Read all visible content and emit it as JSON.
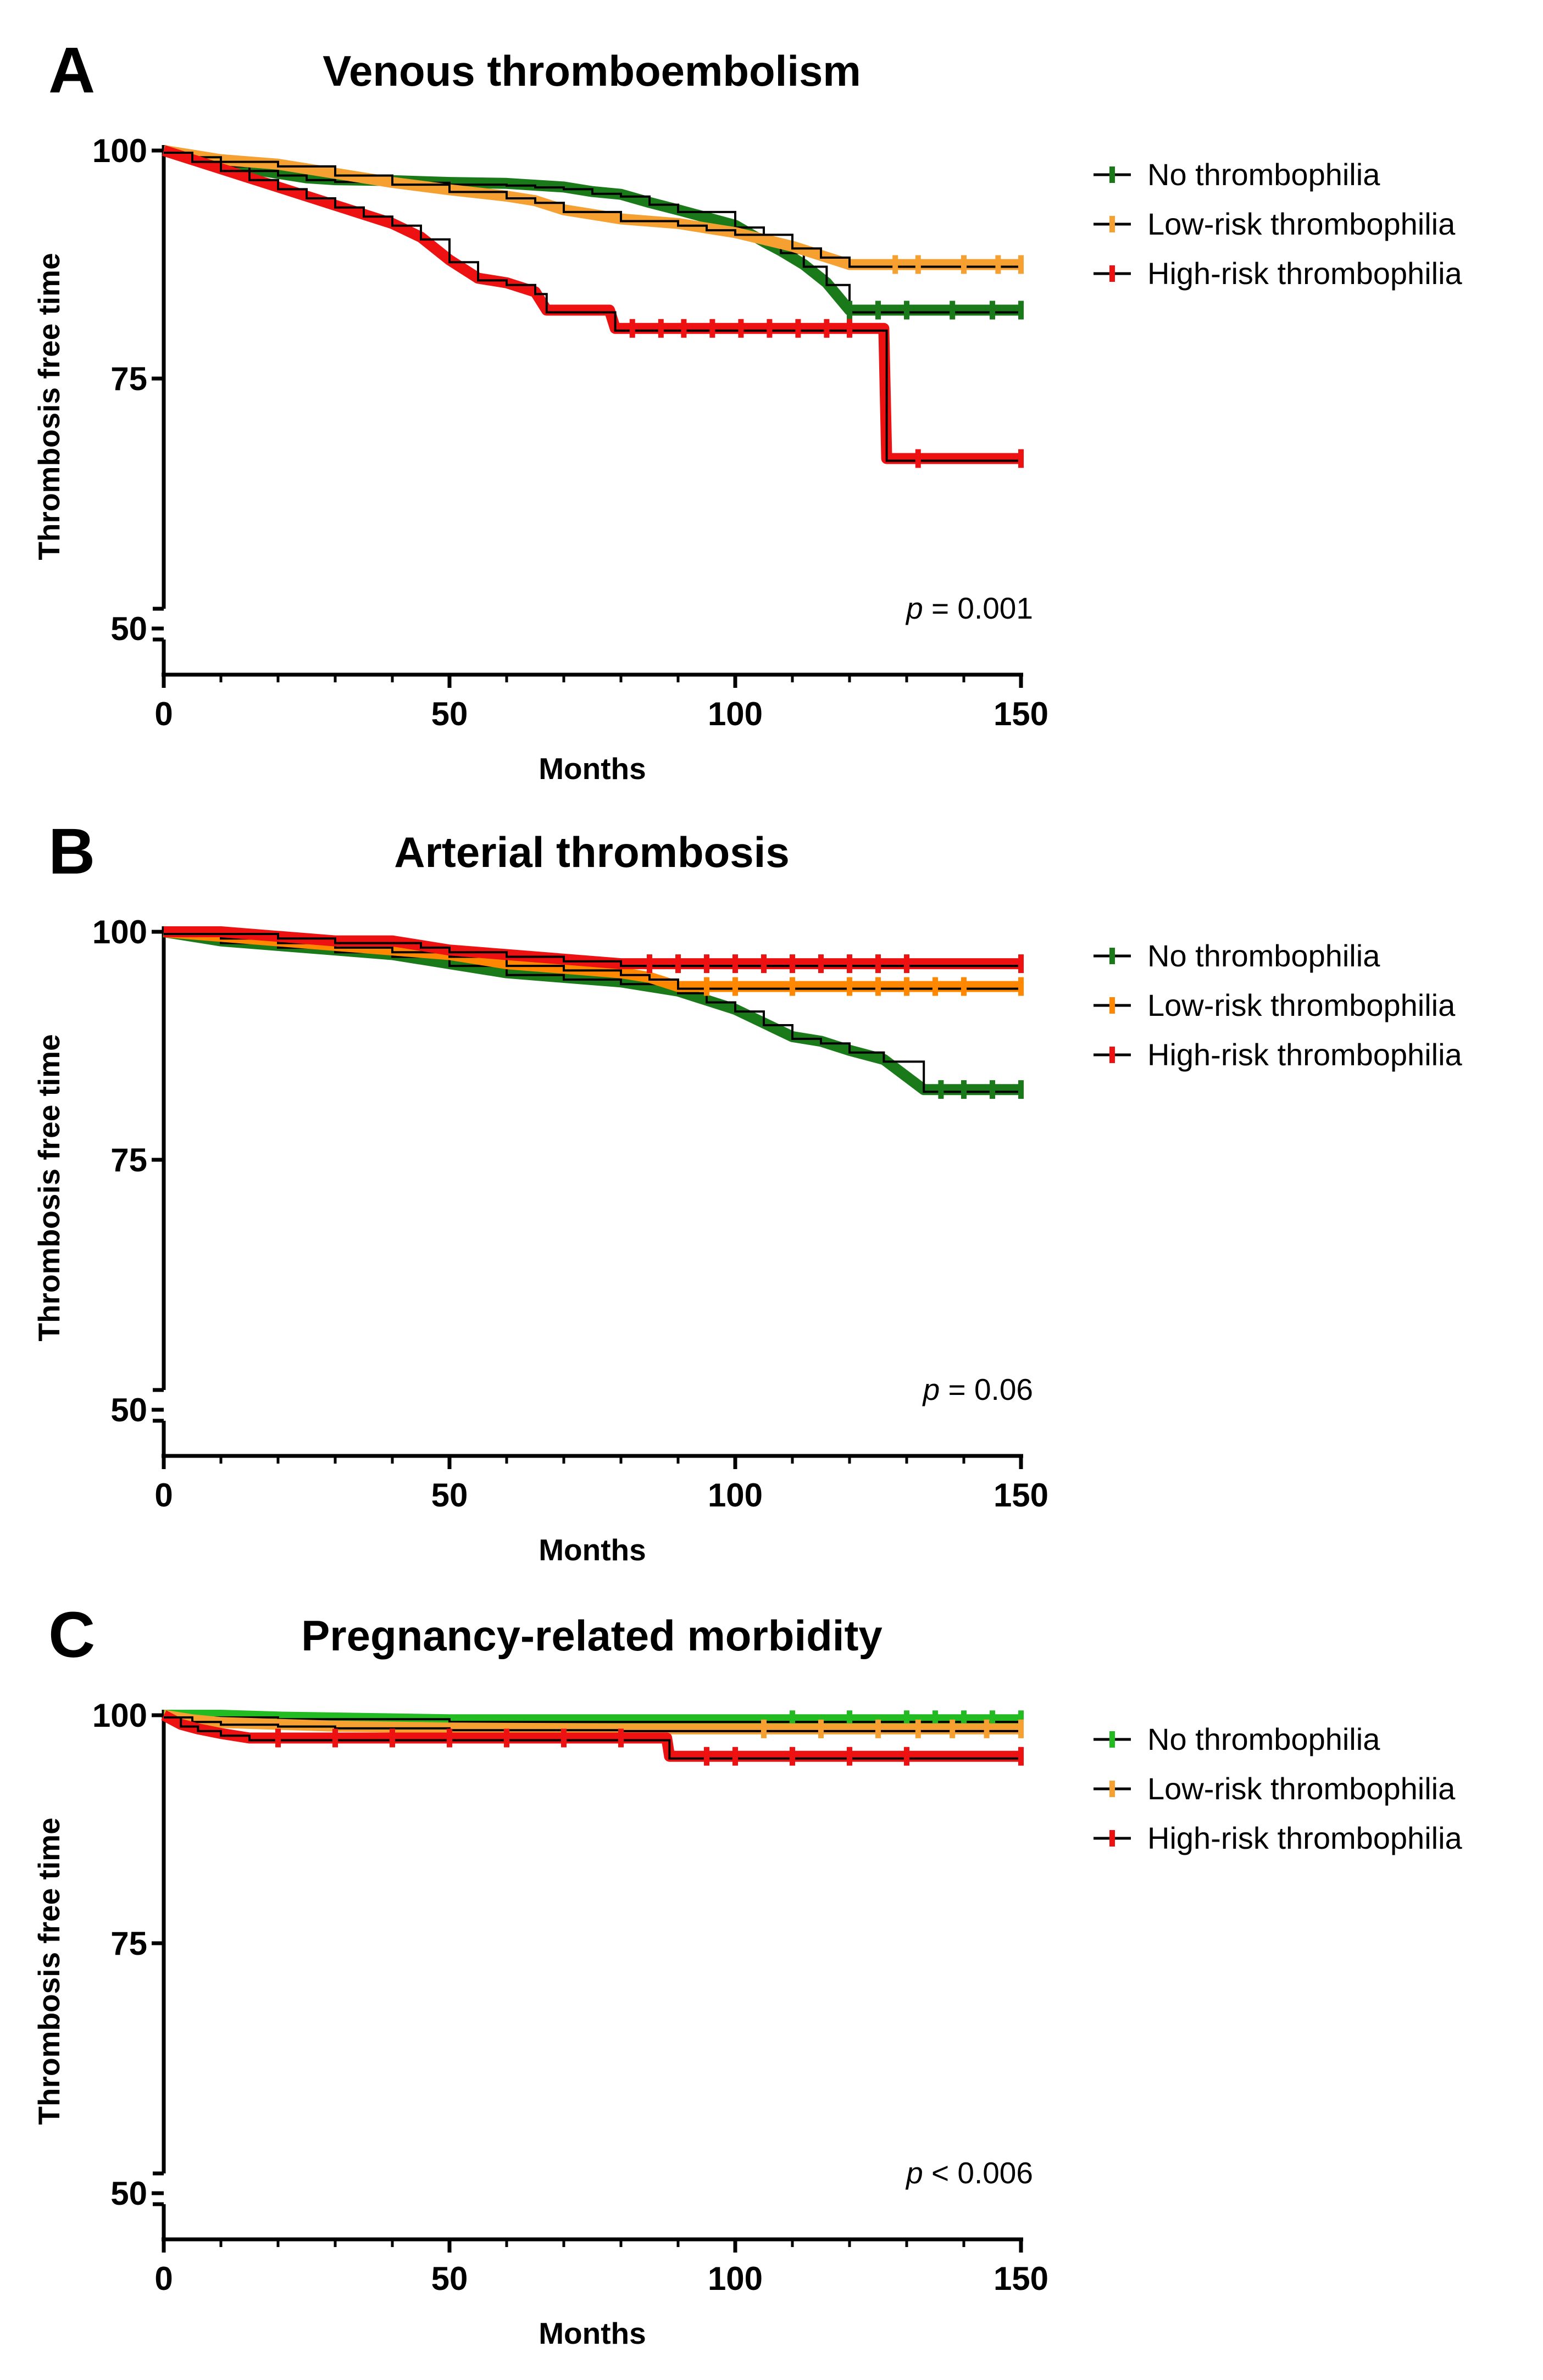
{
  "chart_data": [
    {
      "panel": "A",
      "type": "line",
      "title": "Venous thromboembolism",
      "xlabel": "Months",
      "ylabel": "Thrombosis free time",
      "xlim": [
        0,
        150
      ],
      "ylim": [
        50,
        100
      ],
      "xticks": [
        0,
        50,
        100,
        150
      ],
      "yticks": [
        50,
        75,
        100
      ],
      "p_prefix": "p",
      "p_rest": " = 0.001",
      "legend": [
        "No thrombophilia",
        "Low-risk thrombophilia",
        "High-risk thrombophilia"
      ],
      "series": [
        {
          "name": "No thrombophilia",
          "color": "#1a7a1a",
          "points": [
            [
              0,
              100
            ],
            [
              5,
              99
            ],
            [
              10,
              98.5
            ],
            [
              15,
              98
            ],
            [
              20,
              97.5
            ],
            [
              25,
              97
            ],
            [
              30,
              96.8
            ],
            [
              40,
              96.7
            ],
            [
              50,
              96.5
            ],
            [
              60,
              96.4
            ],
            [
              65,
              96.2
            ],
            [
              70,
              96
            ],
            [
              75,
              95.5
            ],
            [
              80,
              95.2
            ],
            [
              85,
              94.3
            ],
            [
              90,
              93.5
            ],
            [
              100,
              91.8
            ],
            [
              105,
              90
            ],
            [
              108,
              89
            ],
            [
              112,
              87.5
            ],
            [
              116,
              85.5
            ],
            [
              120,
              82.5
            ],
            [
              150,
              82.5
            ]
          ],
          "censors": [
            [
              120,
              82.5
            ],
            [
              125,
              82.5
            ],
            [
              130,
              82.5
            ],
            [
              138,
              82.5
            ],
            [
              145,
              82.5
            ],
            [
              150,
              82.5
            ]
          ]
        },
        {
          "name": "Low-risk thrombophilia",
          "color": "#f5a030",
          "points": [
            [
              0,
              100
            ],
            [
              5,
              99.5
            ],
            [
              10,
              99
            ],
            [
              20,
              98.5
            ],
            [
              30,
              97.5
            ],
            [
              40,
              96.5
            ],
            [
              50,
              95.7
            ],
            [
              60,
              95
            ],
            [
              65,
              94.5
            ],
            [
              70,
              93.5
            ],
            [
              80,
              92.5
            ],
            [
              90,
              92
            ],
            [
              95,
              91.5
            ],
            [
              100,
              91
            ],
            [
              110,
              89.5
            ],
            [
              115,
              88.5
            ],
            [
              120,
              87.5
            ],
            [
              150,
              87.5
            ]
          ],
          "censors": [
            [
              128,
              87.5
            ],
            [
              132,
              87.5
            ],
            [
              140,
              87.5
            ],
            [
              146,
              87.5
            ],
            [
              150,
              87.5
            ]
          ]
        },
        {
          "name": "High-risk thrombophilia",
          "color": "#ee1111",
          "points": [
            [
              0,
              100
            ],
            [
              5,
              99
            ],
            [
              10,
              98
            ],
            [
              15,
              97
            ],
            [
              20,
              96
            ],
            [
              25,
              95
            ],
            [
              30,
              94
            ],
            [
              35,
              93
            ],
            [
              40,
              92
            ],
            [
              45,
              90.5
            ],
            [
              50,
              88
            ],
            [
              55,
              86
            ],
            [
              60,
              85.5
            ],
            [
              65,
              84.5
            ],
            [
              67,
              82.5
            ],
            [
              78,
              82.5
            ],
            [
              79,
              80.5
            ],
            [
              126,
              80.5
            ],
            [
              126.5,
              67
            ],
            [
              150,
              67
            ]
          ],
          "censors": [
            [
              82,
              80.5
            ],
            [
              87,
              80.5
            ],
            [
              91,
              80.5
            ],
            [
              96,
              80.5
            ],
            [
              101,
              80.5
            ],
            [
              106,
              80.5
            ],
            [
              111,
              80.5
            ],
            [
              116,
              80.5
            ],
            [
              120,
              80.5
            ],
            [
              132,
              67
            ],
            [
              150,
              67
            ]
          ]
        }
      ]
    },
    {
      "panel": "B",
      "type": "line",
      "title": "Arterial  thrombosis",
      "xlabel": "Months",
      "ylabel": "Thrombosis free time",
      "xlim": [
        0,
        150
      ],
      "ylim": [
        50,
        100
      ],
      "xticks": [
        0,
        50,
        100,
        150
      ],
      "yticks": [
        50,
        75,
        100
      ],
      "p_prefix": "p",
      "p_rest": " = 0.06",
      "legend": [
        "No thrombophilia",
        "Low-risk thrombophilia",
        "High-risk thrombophilia"
      ],
      "series": [
        {
          "name": "No thrombophilia",
          "color": "#1a7a1a",
          "points": [
            [
              0,
              100
            ],
            [
              10,
              99
            ],
            [
              20,
              98.5
            ],
            [
              30,
              98
            ],
            [
              40,
              97.5
            ],
            [
              50,
              96.5
            ],
            [
              60,
              95.5
            ],
            [
              70,
              95
            ],
            [
              80,
              94.5
            ],
            [
              90,
              93.5
            ],
            [
              95,
              92.5
            ],
            [
              100,
              91.5
            ],
            [
              105,
              90
            ],
            [
              110,
              88.5
            ],
            [
              115,
              88
            ],
            [
              120,
              87
            ],
            [
              126,
              86
            ],
            [
              133,
              82.7
            ],
            [
              150,
              82.7
            ]
          ],
          "censors": [
            [
              136,
              82.7
            ],
            [
              140,
              82.7
            ],
            [
              145,
              82.7
            ],
            [
              150,
              82.7
            ]
          ]
        },
        {
          "name": "Low-risk thrombophilia",
          "color": "#ff8800",
          "points": [
            [
              0,
              100
            ],
            [
              10,
              99.5
            ],
            [
              20,
              99
            ],
            [
              30,
              98.5
            ],
            [
              40,
              98
            ],
            [
              50,
              97.5
            ],
            [
              60,
              96.5
            ],
            [
              70,
              96
            ],
            [
              80,
              95.5
            ],
            [
              85,
              95
            ],
            [
              90,
              94
            ],
            [
              150,
              94
            ]
          ],
          "censors": [
            [
              95,
              94
            ],
            [
              100,
              94
            ],
            [
              110,
              94
            ],
            [
              120,
              94
            ],
            [
              125,
              94
            ],
            [
              130,
              94
            ],
            [
              135,
              94
            ],
            [
              140,
              94
            ],
            [
              150,
              94
            ]
          ]
        },
        {
          "name": "High-risk thrombophilia",
          "color": "#ee1111",
          "points": [
            [
              0,
              100
            ],
            [
              10,
              100
            ],
            [
              20,
              99.5
            ],
            [
              30,
              99
            ],
            [
              40,
              99
            ],
            [
              45,
              98.5
            ],
            [
              50,
              98
            ],
            [
              60,
              97.5
            ],
            [
              70,
              97
            ],
            [
              80,
              96.5
            ],
            [
              150,
              96.5
            ]
          ],
          "censors": [
            [
              85,
              96.5
            ],
            [
              90,
              96.5
            ],
            [
              95,
              96.5
            ],
            [
              100,
              96.5
            ],
            [
              105,
              96.5
            ],
            [
              110,
              96.5
            ],
            [
              115,
              96.5
            ],
            [
              120,
              96.5
            ],
            [
              125,
              96.5
            ],
            [
              130,
              96.5
            ],
            [
              150,
              96.5
            ]
          ]
        }
      ]
    },
    {
      "panel": "C",
      "type": "line",
      "title": "Pregnancy-related morbidity",
      "xlabel": "Months",
      "ylabel": "Thrombosis free time",
      "xlim": [
        0,
        150
      ],
      "ylim": [
        50,
        100
      ],
      "xticks": [
        0,
        50,
        100,
        150
      ],
      "yticks": [
        50,
        75,
        100
      ],
      "p_prefix": "p",
      "p_rest": " < 0.006",
      "legend": [
        "No thrombophilia",
        "Low-risk thrombophilia",
        "High-risk thrombophilia"
      ],
      "series": [
        {
          "name": "No thrombophilia",
          "color": "#22bb22",
          "points": [
            [
              0,
              100
            ],
            [
              10,
              100
            ],
            [
              20,
              99.8
            ],
            [
              50,
              99.5
            ],
            [
              100,
              99.5
            ],
            [
              150,
              99.5
            ]
          ],
          "censors": [
            [
              110,
              99.5
            ],
            [
              120,
              99.5
            ],
            [
              130,
              99.5
            ],
            [
              135,
              99.5
            ],
            [
              140,
              99.5
            ],
            [
              145,
              99.5
            ],
            [
              150,
              99.5
            ]
          ]
        },
        {
          "name": "Low-risk thrombophilia",
          "color": "#f5a030",
          "points": [
            [
              0,
              100
            ],
            [
              5,
              99.5
            ],
            [
              10,
              99.2
            ],
            [
              20,
              99
            ],
            [
              30,
              98.8
            ],
            [
              50,
              98.6
            ],
            [
              80,
              98.5
            ],
            [
              100,
              98.5
            ],
            [
              150,
              98.5
            ]
          ],
          "censors": [
            [
              105,
              98.5
            ],
            [
              115,
              98.5
            ],
            [
              125,
              98.5
            ],
            [
              132,
              98.5
            ],
            [
              138,
              98.5
            ],
            [
              144,
              98.5
            ],
            [
              150,
              98.5
            ]
          ]
        },
        {
          "name": "High-risk thrombophilia",
          "color": "#ee1111",
          "points": [
            [
              0,
              100
            ],
            [
              3,
              99
            ],
            [
              6,
              98.5
            ],
            [
              10,
              98
            ],
            [
              15,
              97.5
            ],
            [
              88,
              97.5
            ],
            [
              88.5,
              95.5
            ],
            [
              150,
              95.5
            ]
          ],
          "censors": [
            [
              20,
              97.5
            ],
            [
              30,
              97.5
            ],
            [
              40,
              97.5
            ],
            [
              50,
              97.5
            ],
            [
              60,
              97.5
            ],
            [
              70,
              97.5
            ],
            [
              80,
              97.5
            ],
            [
              95,
              95.5
            ],
            [
              100,
              95.5
            ],
            [
              110,
              95.5
            ],
            [
              120,
              95.5
            ],
            [
              130,
              95.5
            ],
            [
              150,
              95.5
            ]
          ]
        }
      ]
    }
  ]
}
